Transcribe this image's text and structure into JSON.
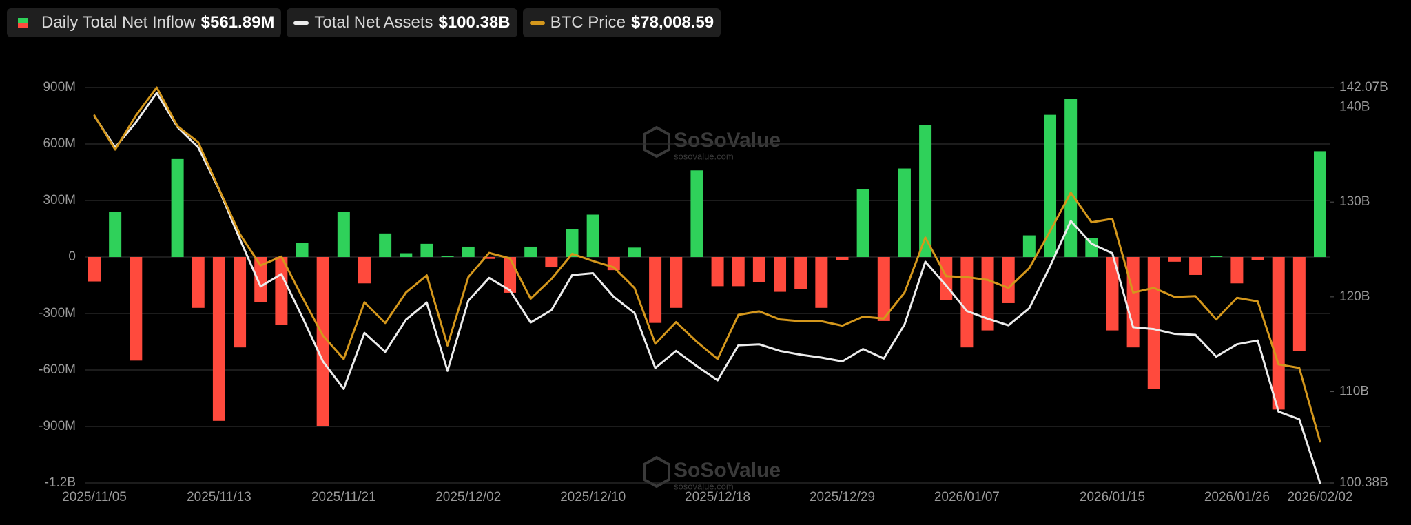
{
  "chart_data": {
    "type": "combo",
    "watermark": "SoSoValue",
    "watermark_url": "sosovalue.com",
    "categories": [
      "2025/11/05",
      null,
      null,
      null,
      null,
      null,
      "2025/11/13",
      null,
      null,
      null,
      null,
      null,
      "2025/11/21",
      null,
      null,
      null,
      null,
      null,
      "2025/12/02",
      null,
      null,
      null,
      null,
      null,
      "2025/12/10",
      null,
      null,
      null,
      null,
      null,
      "2025/12/18",
      null,
      null,
      null,
      null,
      null,
      "2025/12/29",
      null,
      null,
      null,
      null,
      null,
      "2026/01/07",
      null,
      null,
      null,
      null,
      null,
      null,
      "2026/01/15",
      null,
      null,
      null,
      null,
      null,
      "2026/01/26",
      null,
      null,
      null,
      "2026/02/02"
    ],
    "series": [
      {
        "name": "Daily Total Net Inflow",
        "type": "bar",
        "legend_value": "$561.89M",
        "color_positive": "#2fd15a",
        "color_negative": "#ff4a3d",
        "values": [
          -130,
          240,
          -550,
          0,
          520,
          -270,
          -870,
          -480,
          -240,
          -360,
          75,
          -900,
          240,
          -140,
          125,
          20,
          70,
          5,
          55,
          -10,
          -190,
          55,
          -55,
          150,
          225,
          -70,
          50,
          -350,
          -270,
          460,
          -155,
          -155,
          -135,
          -185,
          -170,
          -270,
          -15,
          360,
          -340,
          470,
          700,
          -230,
          -480,
          -390,
          -245,
          115,
          755,
          840,
          100,
          -390,
          -480,
          -700,
          -25,
          -95,
          5,
          -140,
          -15,
          -810,
          -500,
          561.89
        ]
      },
      {
        "name": "Total Net Assets",
        "type": "line",
        "axis": "y2",
        "legend_value": "$100.38B",
        "color": "#ececec",
        "values": [
          139.06,
          135.75,
          138.4,
          141.5,
          137.9,
          135.75,
          131.3,
          126.1,
          121.1,
          122.4,
          117.9,
          113.2,
          110.3,
          116.2,
          114.2,
          117.6,
          119.4,
          112.2,
          119.6,
          122.0,
          120.7,
          117.3,
          118.6,
          122.3,
          122.5,
          120.0,
          118.3,
          112.5,
          114.3,
          112.7,
          111.2,
          114.9,
          115.0,
          114.3,
          113.9,
          113.6,
          113.2,
          114.5,
          113.5,
          117.1,
          123.7,
          121.2,
          118.5,
          117.7,
          117.0,
          118.8,
          123.2,
          128.0,
          125.6,
          124.6,
          116.8,
          116.6,
          116.1,
          116.0,
          113.7,
          115.0,
          115.4,
          107.9,
          107.1,
          100.38
        ]
      },
      {
        "name": "BTC Price",
        "type": "line",
        "axis": "y3",
        "legend_value": "$78,008.59",
        "color": "#d4971c",
        "values": [
          103650,
          100970,
          103650,
          105850,
          102810,
          101540,
          97860,
          94330,
          91855,
          92560,
          89380,
          86340,
          84500,
          88960,
          87330,
          89730,
          91080,
          85560,
          90940,
          92840,
          92420,
          89240,
          90790,
          92770,
          92210,
          91710,
          90090,
          85700,
          87400,
          85850,
          84500,
          87970,
          88250,
          87610,
          87470,
          87470,
          87120,
          87830,
          87680,
          89730,
          94050,
          91010,
          90940,
          90720,
          90090,
          91640,
          94540,
          97580,
          95250,
          95530,
          89730,
          90090,
          89380,
          89450,
          87610,
          89310,
          89030,
          84080,
          83800,
          78008.59
        ]
      }
    ],
    "ylim": [
      -1200,
      900
    ],
    "yticks": [
      {
        "value": 900,
        "label": "900M"
      },
      {
        "value": 600,
        "label": "600M"
      },
      {
        "value": 300,
        "label": "300M"
      },
      0,
      {
        "value": -300,
        "label": "-300M"
      },
      {
        "value": -600,
        "label": "-600M"
      },
      {
        "value": -900,
        "label": "-900M"
      },
      {
        "value": -1200,
        "label": "-1.2B"
      }
    ],
    "y2lim": [
      100.38,
      142.07
    ],
    "y2ticks": [
      {
        "value": 142.07,
        "label": "142.07B"
      },
      {
        "value": 140,
        "label": "140B"
      },
      {
        "value": 130,
        "label": "130B"
      },
      {
        "value": 120,
        "label": "120B"
      },
      {
        "value": 110,
        "label": "110B"
      },
      {
        "value": 100.38,
        "label": "100.38B"
      }
    ],
    "y3lim": [
      74750,
      105850
    ],
    "grid": true
  }
}
